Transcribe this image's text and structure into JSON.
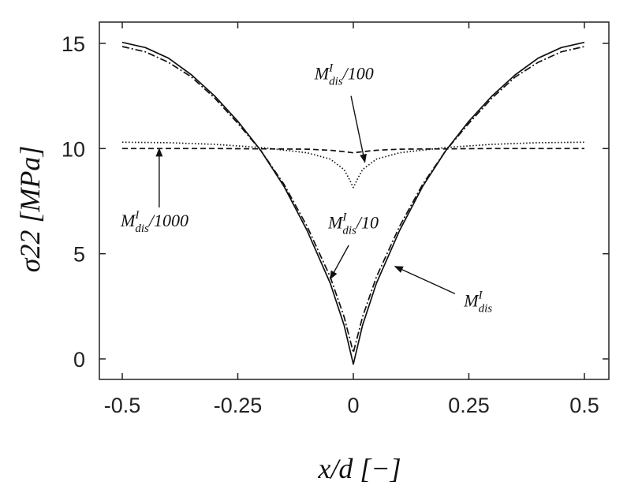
{
  "chart_data": {
    "type": "line",
    "xlabel": "x/d [−]",
    "ylabel": "σ22 [MPa]",
    "xlim": [
      -0.5,
      0.5
    ],
    "ylim": [
      -1,
      16
    ],
    "xticks": [
      -0.5,
      -0.25,
      0,
      0.25,
      0.5
    ],
    "xtick_labels": [
      "-0.5",
      "-0.25",
      "0",
      "0.25",
      "0.5"
    ],
    "yticks": [
      0,
      5,
      10,
      15
    ],
    "ytick_labels": [
      "0",
      "5",
      "10",
      "15"
    ],
    "grid": false,
    "series": [
      {
        "name": "M_dis^I",
        "style": "solid",
        "x": [
          -0.5,
          -0.45,
          -0.4,
          -0.35,
          -0.3,
          -0.25,
          -0.2,
          -0.15,
          -0.1,
          -0.05,
          -0.02,
          0,
          0.02,
          0.05,
          0.1,
          0.15,
          0.2,
          0.25,
          0.3,
          0.35,
          0.4,
          0.45,
          0.5
        ],
        "y": [
          15.05,
          14.8,
          14.3,
          13.5,
          12.5,
          11.3,
          9.9,
          8.2,
          6.1,
          3.6,
          1.6,
          -0.25,
          1.6,
          3.6,
          6.1,
          8.2,
          9.9,
          11.3,
          12.5,
          13.5,
          14.3,
          14.8,
          15.05
        ]
      },
      {
        "name": "M_dis^I/10",
        "style": "dashdot",
        "x": [
          -0.5,
          -0.45,
          -0.4,
          -0.35,
          -0.3,
          -0.25,
          -0.2,
          -0.15,
          -0.1,
          -0.05,
          -0.02,
          0,
          0.02,
          0.05,
          0.1,
          0.15,
          0.2,
          0.25,
          0.3,
          0.35,
          0.4,
          0.45,
          0.5
        ],
        "y": [
          14.85,
          14.6,
          14.1,
          13.4,
          12.4,
          11.2,
          9.9,
          8.3,
          6.3,
          3.9,
          2.0,
          0.3,
          2.0,
          3.9,
          6.3,
          8.3,
          9.9,
          11.2,
          12.4,
          13.4,
          14.1,
          14.6,
          14.85
        ]
      },
      {
        "name": "M_dis^I/100",
        "style": "dotted",
        "x": [
          -0.5,
          -0.4,
          -0.3,
          -0.2,
          -0.1,
          -0.05,
          -0.02,
          -0.01,
          0,
          0.01,
          0.02,
          0.05,
          0.1,
          0.2,
          0.3,
          0.4,
          0.5
        ],
        "y": [
          10.3,
          10.28,
          10.2,
          10.05,
          9.8,
          9.5,
          9.0,
          8.6,
          8.15,
          8.6,
          9.0,
          9.5,
          9.8,
          10.05,
          10.2,
          10.28,
          10.3
        ]
      },
      {
        "name": "M_dis^I/1000",
        "style": "dashed",
        "x": [
          -0.5,
          -0.3,
          -0.1,
          -0.05,
          -0.02,
          0,
          0.02,
          0.05,
          0.1,
          0.3,
          0.5
        ],
        "y": [
          10.0,
          10.0,
          9.97,
          9.92,
          9.85,
          9.8,
          9.85,
          9.92,
          9.97,
          10.0,
          10.0
        ]
      }
    ],
    "annotations": [
      {
        "base": "M",
        "sup": "I",
        "sub": "dis",
        "suffix": "/100",
        "text_x": -0.02,
        "text_y": 13.3,
        "arrow_from": [
          -0.005,
          12.5
        ],
        "arrow_to": [
          0.025,
          9.35
        ]
      },
      {
        "base": "M",
        "sup": "I",
        "sub": "dis",
        "suffix": "/1000",
        "text_x": -0.43,
        "text_y": 6.3,
        "arrow_from": [
          -0.42,
          7.2
        ],
        "arrow_to": [
          -0.42,
          10.0
        ]
      },
      {
        "base": "M",
        "sup": "I",
        "sub": "dis",
        "suffix": "/10",
        "text_x": 0.0,
        "text_y": 6.2,
        "arrow_from": [
          -0.01,
          5.4
        ],
        "arrow_to": [
          -0.05,
          3.8
        ]
      },
      {
        "base": "M",
        "sup": "I",
        "sub": "dis",
        "suffix": "",
        "text_x": 0.27,
        "text_y": 2.5,
        "arrow_from": [
          0.22,
          3.1
        ],
        "arrow_to": [
          0.09,
          4.4
        ]
      }
    ]
  }
}
